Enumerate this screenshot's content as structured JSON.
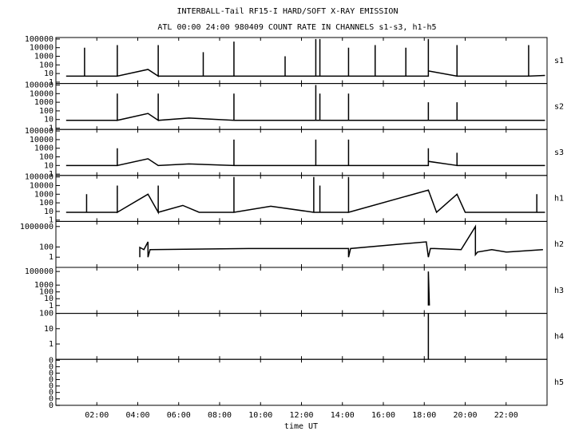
{
  "chart_data": [
    {
      "type": "line",
      "title": "INTERBALL-Tail RF15-I HARD/SOFT X-RAY EMISSION",
      "subtitle": "ATL 00:00 24:00 980409  COUNT RATE IN CHANNELS s1-s3, h1-h5",
      "name": "s1",
      "log": true,
      "ylim": [
        0.7,
        150000
      ],
      "yticks": [
        1,
        10,
        100,
        1000,
        10000,
        100000
      ],
      "x": [
        0.5,
        1.4,
        1.4,
        1.4,
        3,
        3,
        3,
        4.5,
        5,
        5,
        5,
        7.2,
        7.2,
        7.2,
        8.7,
        8.7,
        8.7,
        11.2,
        11.2,
        11.2,
        12.7,
        12.7,
        12.7,
        12.9,
        12.9,
        12.9,
        14.3,
        14.3,
        14.3,
        15.6,
        15.6,
        15.6,
        17.1,
        17.1,
        17.1,
        18.2,
        18.2,
        18.2,
        19.6,
        19.6,
        19.6,
        23.1,
        23.1,
        23.1,
        23.9
      ],
      "values": [
        5,
        5,
        10000,
        5,
        5,
        20000,
        5,
        30,
        5,
        20000,
        5,
        5,
        3000,
        5,
        5,
        50000,
        5,
        5,
        1000,
        5,
        5,
        100000,
        5,
        5,
        100000,
        5,
        5,
        10000,
        5,
        5,
        20000,
        5,
        5,
        10000,
        5,
        5,
        100000,
        20,
        5,
        20000,
        5,
        5,
        20000,
        5,
        6
      ]
    },
    {
      "type": "line",
      "name": "s2",
      "log": true,
      "ylim": [
        0.7,
        150000
      ],
      "yticks": [
        1,
        10,
        100,
        1000,
        10000,
        100000
      ],
      "x": [
        0.5,
        3,
        3,
        3,
        4.5,
        5,
        5,
        5,
        6.5,
        8.7,
        8.7,
        8.7,
        11,
        12.7,
        12.7,
        12.7,
        12.9,
        12.9,
        12.9,
        14.3,
        14.3,
        14.3,
        18.2,
        18.2,
        18.2,
        19.6,
        19.6,
        19.6,
        23.9
      ],
      "values": [
        8,
        8,
        10000,
        8,
        50,
        8,
        10000,
        8,
        15,
        8,
        10000,
        8,
        8,
        8,
        100000,
        8,
        8,
        10000,
        8,
        8,
        10000,
        8,
        8,
        1000,
        8,
        8,
        1000,
        8,
        8
      ]
    },
    {
      "type": "line",
      "name": "s3",
      "log": true,
      "ylim": [
        0.7,
        150000
      ],
      "yticks": [
        1,
        10,
        100,
        1000,
        10000,
        100000
      ],
      "x": [
        0.5,
        3,
        3,
        3,
        4.5,
        5,
        6.5,
        8.7,
        8.7,
        8.7,
        12.7,
        12.7,
        12.7,
        14.3,
        14.3,
        14.3,
        18.2,
        18.2,
        18.2,
        19.6,
        19.6,
        19.6,
        23.9
      ],
      "values": [
        10,
        10,
        1000,
        10,
        60,
        10,
        15,
        10,
        10000,
        10,
        10,
        10000,
        10,
        10,
        10000,
        10,
        10,
        1000,
        30,
        10,
        300,
        10,
        10
      ]
    },
    {
      "type": "line",
      "name": "h1",
      "log": true,
      "ylim": [
        0.7,
        150000
      ],
      "yticks": [
        1,
        10,
        100,
        1000,
        10000,
        100000
      ],
      "x": [
        0.5,
        1.5,
        1.5,
        1.5,
        3,
        3,
        3,
        4.5,
        5,
        5,
        5,
        6.2,
        7,
        8.7,
        8.7,
        8.7,
        10.5,
        12.6,
        12.6,
        12.6,
        12.9,
        12.9,
        12.9,
        14.3,
        14.3,
        14.3,
        18.2,
        18.6,
        19.6,
        20,
        23.5,
        23.5,
        23.5,
        23.9
      ],
      "values": [
        8,
        8,
        1000,
        8,
        8,
        10000,
        8,
        1000,
        8,
        10000,
        8,
        50,
        8,
        8,
        100000,
        8,
        40,
        8,
        100000,
        8,
        8,
        10000,
        8,
        8,
        100000,
        8,
        3000,
        8,
        1000,
        8,
        8,
        1000,
        8,
        8
      ]
    },
    {
      "type": "line",
      "name": "h2",
      "log": true,
      "ylim": [
        0.01,
        10000000
      ],
      "yticks": [
        1,
        100,
        1000000
      ],
      "x": [
        4.1,
        4.1,
        4.3,
        4.5,
        4.5,
        4.6,
        9.4,
        14.3,
        14.3,
        14.4,
        18.1,
        18.2,
        18.3,
        18.5,
        19.8,
        20.5,
        20.5,
        20.6,
        21.3,
        22,
        23.8
      ],
      "values": [
        1,
        80,
        30,
        1000,
        1,
        30,
        50,
        50,
        1,
        50,
        1000,
        1,
        50,
        50,
        30,
        1000000,
        3,
        10,
        30,
        10,
        30
      ]
    },
    {
      "type": "line",
      "name": "h3",
      "log": true,
      "ylim": [
        0.07,
        400000
      ],
      "yticks": [
        1,
        10,
        100,
        1000,
        100000
      ],
      "x": [
        18.2,
        18.2,
        18.25
      ],
      "values": [
        1,
        100000,
        1
      ]
    },
    {
      "type": "line",
      "name": "h4",
      "log": true,
      "ylim": [
        0.1,
        100
      ],
      "yticks": [
        1,
        10,
        100
      ],
      "x": [
        18.2,
        18.2
      ],
      "values": [
        0.1,
        100
      ]
    },
    {
      "type": "line",
      "name": "h5",
      "log": false,
      "ylim": [
        0,
        1
      ],
      "yticks": [
        {
          "value": 0,
          "label": "0"
        },
        {
          "value": 0.14,
          "label": "0"
        },
        {
          "value": 0.28,
          "label": "0"
        },
        {
          "value": 0.42,
          "label": "0"
        },
        {
          "value": 0.56,
          "label": "0"
        },
        {
          "value": 0.7,
          "label": "0"
        },
        {
          "value": 0.84,
          "label": "0"
        },
        {
          "value": 0.98,
          "label": "0"
        }
      ],
      "x": [],
      "values": [],
      "xlabel": "time UT",
      "xlim": [
        0,
        24
      ],
      "xticks": [
        {
          "value": 2,
          "label": "02:00"
        },
        {
          "value": 4,
          "label": "04:00"
        },
        {
          "value": 6,
          "label": "06:00"
        },
        {
          "value": 8,
          "label": "08:00"
        },
        {
          "value": 10,
          "label": "10:00"
        },
        {
          "value": 12,
          "label": "12:00"
        },
        {
          "value": 14,
          "label": "14:00"
        },
        {
          "value": 16,
          "label": "16:00"
        },
        {
          "value": 18,
          "label": "18:00"
        },
        {
          "value": 20,
          "label": "20:00"
        },
        {
          "value": 22,
          "label": "22:00"
        }
      ]
    }
  ]
}
